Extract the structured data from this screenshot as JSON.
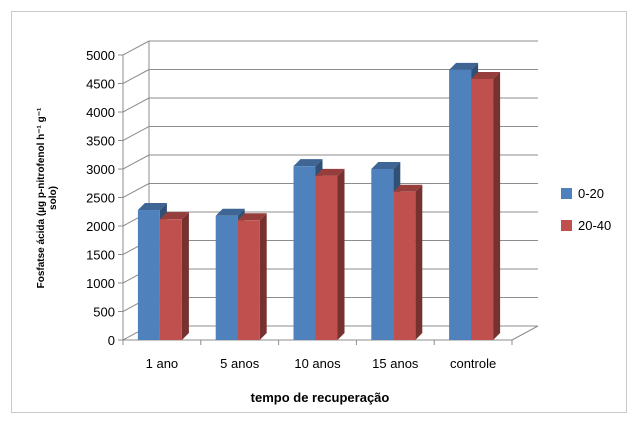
{
  "chart_data": {
    "type": "bar",
    "categories": [
      "1 ano",
      "5 anos",
      "10 anos",
      "15 anos",
      "controle"
    ],
    "series": [
      {
        "name": "0-20",
        "values": [
          2280,
          2180,
          3050,
          3000,
          4740
        ],
        "color": "#4f81bd"
      },
      {
        "name": "20-40",
        "values": [
          2120,
          2100,
          2880,
          2600,
          4580
        ],
        "color": "#c0504d"
      }
    ],
    "y_ticks": [
      "0",
      "500",
      "1000",
      "1500",
      "2000",
      "2500",
      "3000",
      "3500",
      "4000",
      "4500",
      "5000"
    ],
    "ylim": [
      0,
      5000
    ],
    "xlabel": "tempo de recuperação",
    "ylabel_line1": "Fosfatse ácida (µg p-nitrofenol h⁻¹ g⁻¹",
    "ylabel_line2": "solo)",
    "legend_position": "right",
    "grid": true
  }
}
